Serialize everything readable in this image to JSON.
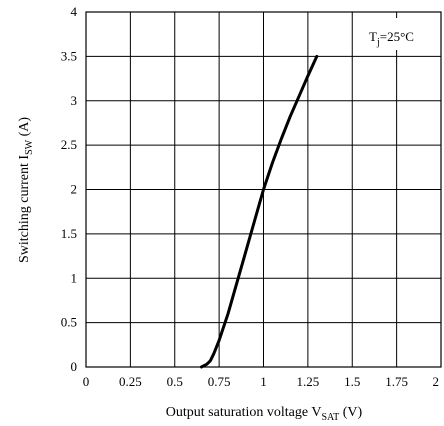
{
  "chart_data": {
    "type": "line",
    "title": "",
    "xlabel": {
      "text": "Output saturation voltage V",
      "sub": "SAT",
      "suffix": " (V)"
    },
    "ylabel": {
      "text": "Switching current I",
      "sub": "SW",
      "suffix": " (A)"
    },
    "xlim": [
      0,
      2
    ],
    "ylim": [
      0,
      4
    ],
    "xticks": [
      "0",
      "0.25",
      "0.5",
      "0.75",
      "1",
      "1.25",
      "1.5",
      "1.75",
      "2"
    ],
    "xtick_values": [
      0,
      0.25,
      0.5,
      0.75,
      1,
      1.25,
      1.5,
      1.75,
      2
    ],
    "yticks": [
      "0",
      "0.5",
      "1",
      "1.5",
      "2",
      "2.5",
      "3",
      "3.5",
      "4"
    ],
    "ytick_values": [
      0,
      0.5,
      1,
      1.5,
      2,
      2.5,
      3,
      3.5,
      4
    ],
    "grid": true,
    "annotation": {
      "text": "T",
      "sub": "j",
      "suffix": "=25°C",
      "placement": "top-right"
    },
    "series": [
      {
        "color": "#000000",
        "x": [
          0.65,
          0.68,
          0.7,
          0.72,
          0.75,
          0.8,
          0.85,
          0.9,
          0.95,
          1.0,
          1.05,
          1.1,
          1.15,
          1.2,
          1.25,
          1.3
        ],
        "y": [
          0.0,
          0.03,
          0.07,
          0.15,
          0.3,
          0.6,
          0.95,
          1.3,
          1.65,
          2.0,
          2.3,
          2.57,
          2.82,
          3.05,
          3.28,
          3.5
        ]
      }
    ]
  }
}
